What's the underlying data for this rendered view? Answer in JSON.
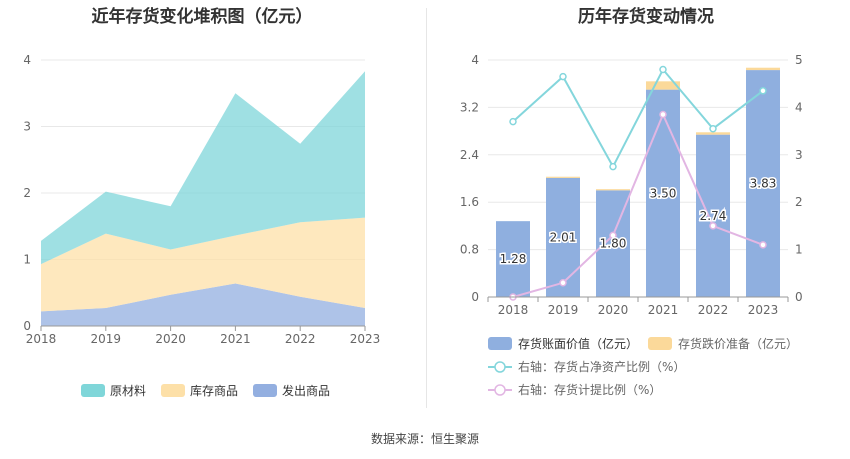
{
  "footer": {
    "source": "数据来源：恒生聚源"
  },
  "colors": {
    "raw": "#7fd6d9",
    "finished": "#fde0a8",
    "shipped": "#93afe0",
    "bar": "#8fafdf",
    "impair": "#fbd99a",
    "line1": "#84d6dc",
    "line2": "#e2b6e3",
    "grid": "#e8e8e8",
    "axis_text": "#666666"
  },
  "chart_data": [
    {
      "type": "area",
      "title": "近年存货变化堆积图（亿元）",
      "x": [
        "2018",
        "2019",
        "2020",
        "2021",
        "2022",
        "2023"
      ],
      "ylim": [
        0,
        4
      ],
      "yticks": [
        "0",
        "1",
        "2",
        "3",
        "4"
      ],
      "stacked": true,
      "legend_position": "bottom",
      "series": [
        {
          "name": "发出商品",
          "values": [
            0.22,
            0.27,
            0.47,
            0.64,
            0.44,
            0.27
          ]
        },
        {
          "name": "库存商品",
          "values": [
            0.71,
            1.12,
            0.68,
            0.72,
            1.12,
            1.36
          ]
        },
        {
          "name": "原材料",
          "values": [
            0.35,
            0.63,
            0.65,
            2.14,
            1.18,
            2.2
          ]
        }
      ],
      "legend_order": [
        "原材料",
        "库存商品",
        "发出商品"
      ]
    },
    {
      "type": "bar",
      "title": "历年存货变动情况",
      "x": [
        "2018",
        "2019",
        "2020",
        "2021",
        "2022",
        "2023"
      ],
      "ylim": [
        0,
        4
      ],
      "yticks": [
        "0",
        "0.8",
        "1.6",
        "2.4",
        "3.2",
        "4"
      ],
      "y2lim": [
        0,
        5
      ],
      "y2ticks": [
        "0",
        "1",
        "2",
        "3",
        "4",
        "5"
      ],
      "legend_position": "bottom",
      "series": [
        {
          "name": "存货账面价值（亿元）",
          "type": "bar",
          "values": [
            1.28,
            2.01,
            1.8,
            3.5,
            2.74,
            3.83
          ],
          "labels": [
            "1.28",
            "2.01",
            "1.80",
            "3.50",
            "2.74",
            "3.83"
          ]
        },
        {
          "name": "存货跌价准备（亿元）",
          "type": "bar",
          "values": [
            0.0,
            0.02,
            0.02,
            0.14,
            0.04,
            0.04
          ]
        },
        {
          "name": "右轴：存货占净资产比例（%）",
          "type": "line",
          "axis": "right",
          "values": [
            3.7,
            4.65,
            2.75,
            4.8,
            3.55,
            4.35
          ]
        },
        {
          "name": "右轴：存货计提比例（%）",
          "type": "line",
          "axis": "right",
          "values": [
            0.0,
            0.3,
            1.3,
            3.85,
            1.5,
            1.1
          ]
        }
      ]
    }
  ]
}
